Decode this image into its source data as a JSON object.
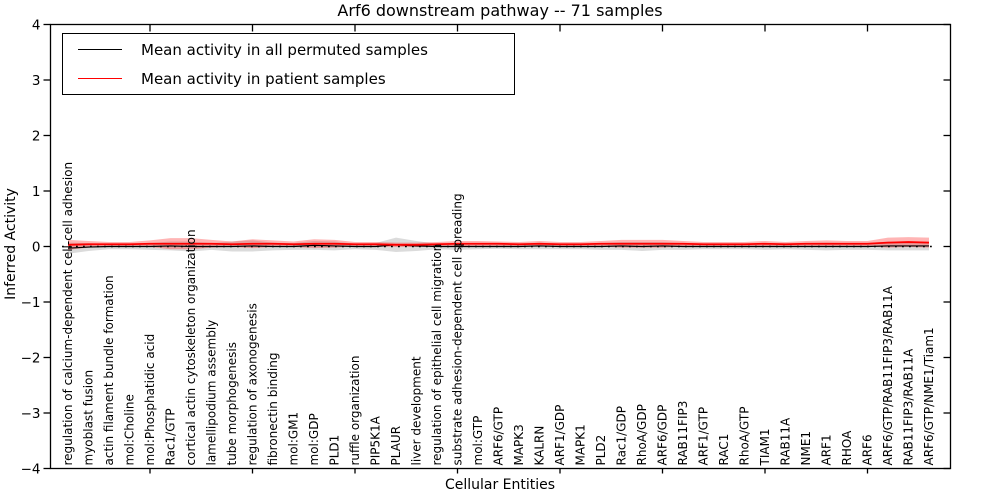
{
  "chart_data": {
    "type": "line",
    "title": "Arf6 downstream pathway -- 71 samples",
    "xlabel": "Cellular Entities",
    "ylabel": "Inferred Activity",
    "ylim": [
      -4,
      4
    ],
    "yticks": [
      4,
      3,
      2,
      1,
      0,
      -1,
      -2,
      -3,
      -4
    ],
    "ytick_labels": [
      "4",
      "3",
      "2",
      "1",
      "0",
      "−1",
      "−2",
      "−3",
      "−4"
    ],
    "grid": false,
    "legend_position": "upper left",
    "zero_line": {
      "value": 0,
      "style": "dotted",
      "color": "#000000"
    },
    "x_major_tick_every": 5,
    "categories": [
      "regulation of calcium-dependent cell-cell adhesion",
      "myoblast fusion",
      "actin filament bundle formation",
      "mol:Choline",
      "mol:Phosphatidic acid",
      "Rac1/GTP",
      "cortical actin cytoskeleton organization",
      "lamellipodium assembly",
      "tube morphogenesis",
      "regulation of axonogenesis",
      "fibronectin binding",
      "mol:GM1",
      "mol:GDP",
      "PLD1",
      "ruffle organization",
      "PIP5K1A",
      "PLAUR",
      "liver development",
      "regulation of epithelial cell migration",
      "substrate adhesion-dependent cell spreading",
      "mol:GTP",
      "ARF6/GTP",
      "MAPK3",
      "KALRN",
      "ARF1/GDP",
      "MAPK1",
      "PLD2",
      "Rac1/GDP",
      "RhoA/GDP",
      "ARF6/GDP",
      "RAB11FIP3",
      "ARF1/GTP",
      "RAC1",
      "RhoA/GTP",
      "TIAM1",
      "RAB11A",
      "NME1",
      "ARF1",
      "RHOA",
      "ARF6",
      "ARF6/GTP/RAB11FIP3/RAB11A",
      "RAB11FIP3/RAB11A",
      "ARF6/GTP/NME1/Tiam1"
    ],
    "series": [
      {
        "name": "Mean activity in all permuted samples",
        "color": "#000000",
        "band_color": "rgba(0,0,0,0.14)",
        "values": [
          -0.03,
          -0.01,
          0,
          0,
          0,
          0.01,
          0,
          0,
          0,
          0.01,
          0,
          0,
          0.02,
          0.01,
          0,
          0,
          0.03,
          0.01,
          0,
          0,
          0,
          0,
          0,
          0.01,
          0,
          0,
          0,
          0.01,
          0,
          0.01,
          0,
          0,
          0,
          0,
          0,
          0,
          0,
          0,
          0,
          0,
          0.01,
          0.01,
          0.01
        ],
        "band_halfwidth": [
          0.1,
          0.07,
          0.05,
          0.05,
          0.06,
          0.08,
          0.09,
          0.06,
          0.09,
          0.1,
          0.07,
          0.06,
          0.08,
          0.08,
          0.05,
          0.06,
          0.13,
          0.09,
          0.05,
          0.06,
          0.05,
          0.04,
          0.05,
          0.06,
          0.05,
          0.05,
          0.06,
          0.07,
          0.08,
          0.07,
          0.06,
          0.05,
          0.05,
          0.05,
          0.06,
          0.05,
          0.06,
          0.07,
          0.06,
          0.06,
          0.08,
          0.08,
          0.08
        ]
      },
      {
        "name": "Mean activity in patient samples",
        "color": "#ff0000",
        "band_color": "rgba(255,30,30,0.33)",
        "values": [
          0.03,
          0.04,
          0.04,
          0.04,
          0.05,
          0.05,
          0.05,
          0.05,
          0.04,
          0.05,
          0.05,
          0.04,
          0.05,
          0.05,
          0.04,
          0.04,
          0.03,
          0.03,
          0.04,
          0.05,
          0.05,
          0.05,
          0.04,
          0.05,
          0.04,
          0.04,
          0.05,
          0.05,
          0.05,
          0.05,
          0.05,
          0.04,
          0.04,
          0.04,
          0.05,
          0.04,
          0.05,
          0.05,
          0.05,
          0.05,
          0.07,
          0.08,
          0.07
        ],
        "band_halfwidth": [
          0.09,
          0.06,
          0.04,
          0.04,
          0.06,
          0.1,
          0.1,
          0.07,
          0.05,
          0.08,
          0.06,
          0.05,
          0.08,
          0.07,
          0.04,
          0.04,
          0.04,
          0.04,
          0.04,
          0.05,
          0.05,
          0.04,
          0.04,
          0.05,
          0.04,
          0.04,
          0.05,
          0.07,
          0.07,
          0.07,
          0.05,
          0.04,
          0.04,
          0.04,
          0.05,
          0.04,
          0.05,
          0.06,
          0.05,
          0.05,
          0.09,
          0.09,
          0.09
        ]
      }
    ]
  }
}
